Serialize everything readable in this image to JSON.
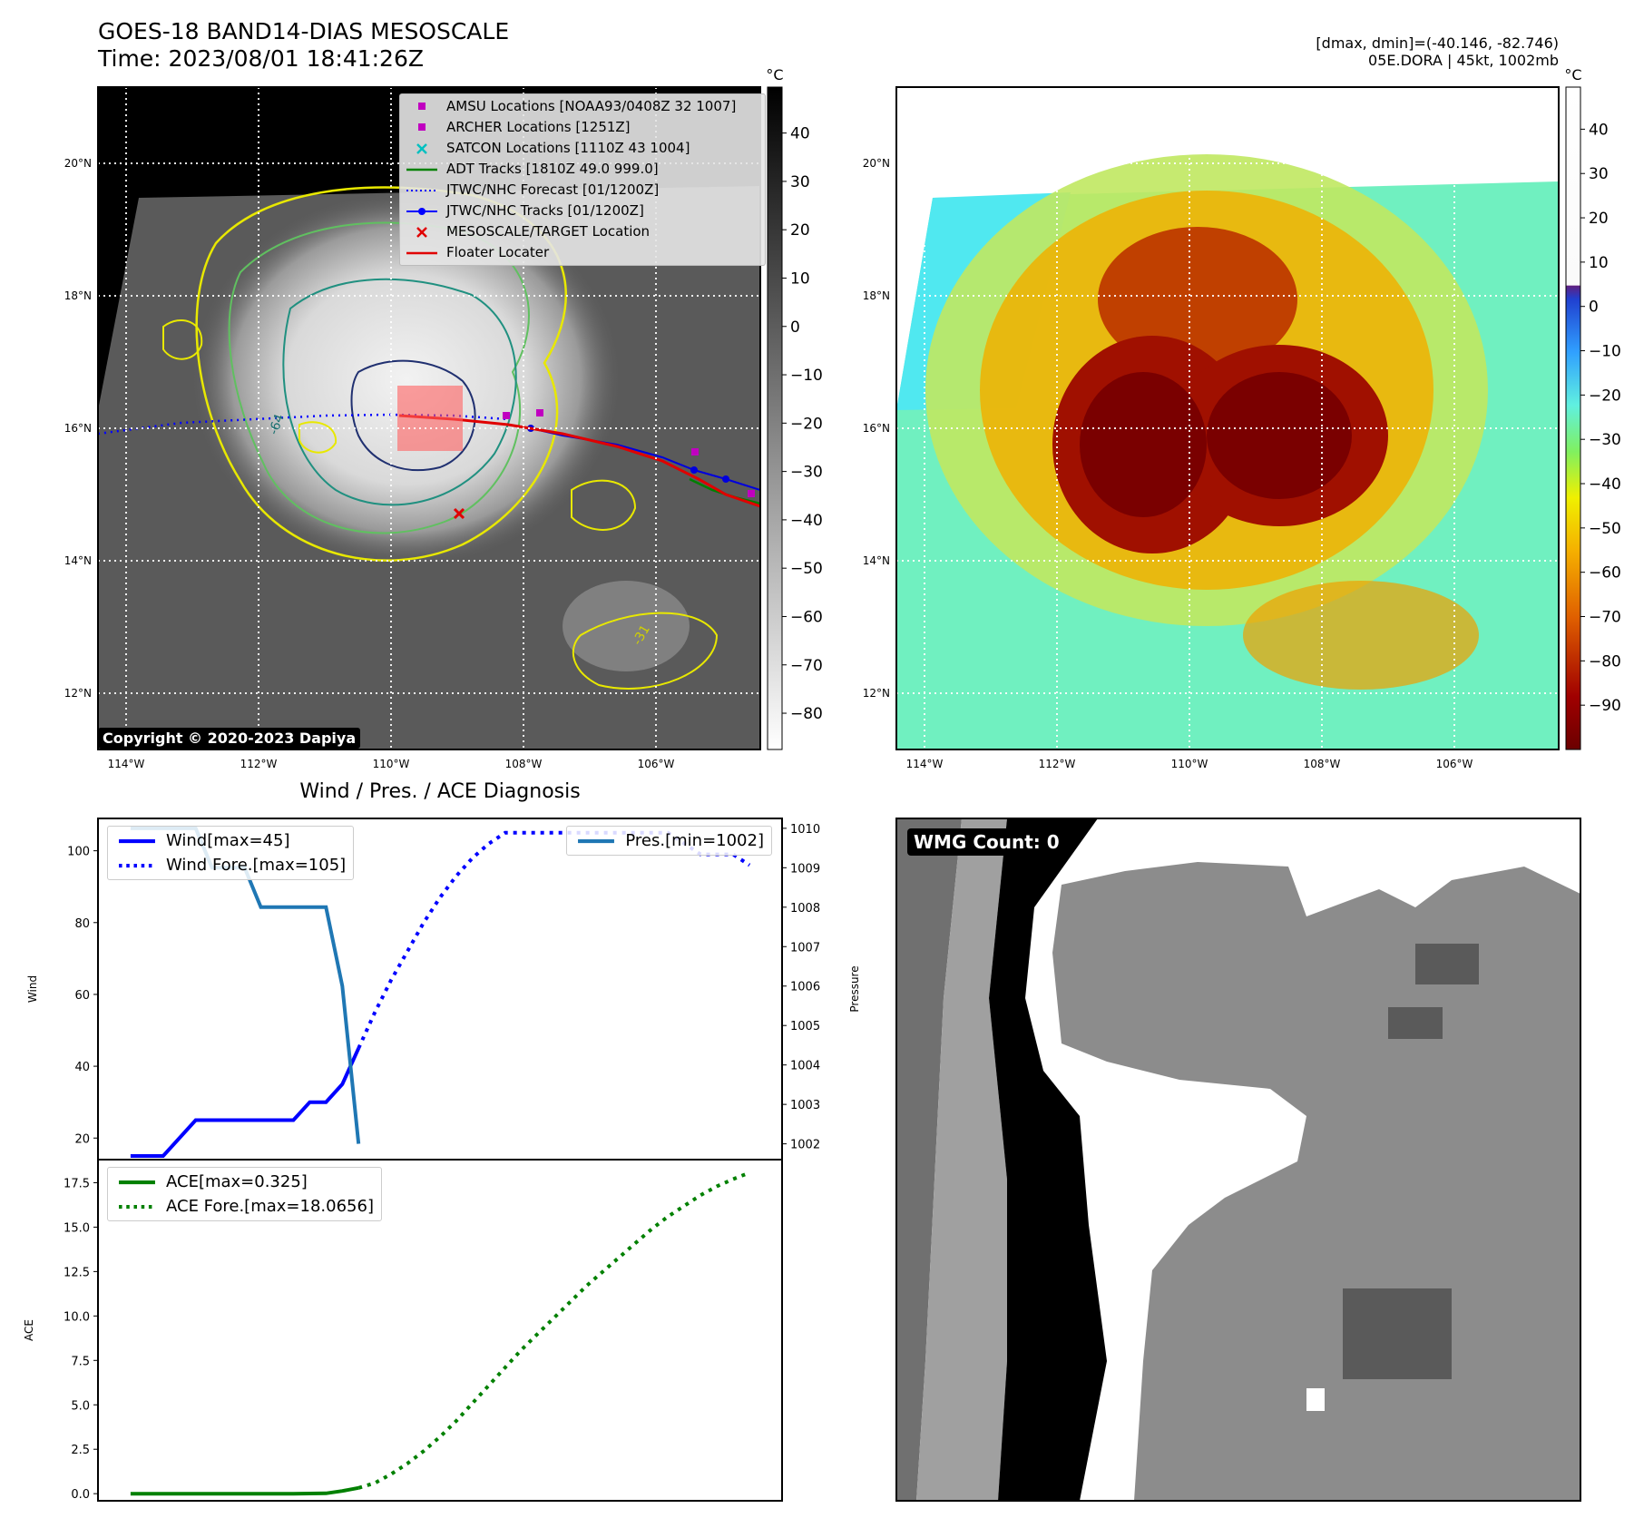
{
  "header": {
    "title_line1": "GOES-18 BAND14-DIAS MESOSCALE",
    "title_line2": "Time: 2023/08/01 18:41:26Z",
    "right_line1": "[dmax, dmin]=(-40.146, -82.746)",
    "right_line2": "05E.DORA | 45kt, 1002mb"
  },
  "map": {
    "lat_labels": [
      "20°N",
      "18°N",
      "16°N",
      "14°N",
      "12°N"
    ],
    "lon_labels": [
      "114°W",
      "112°W",
      "110°W",
      "108°W",
      "106°W"
    ],
    "copyright": "Copyright © 2020-2023 Dapiya",
    "contour_labels": [
      "-64",
      "-31"
    ],
    "legend": [
      {
        "label": "AMSU Locations [NOAA93/0408Z 32 1007]",
        "color": "#c000c0",
        "symbol": "square"
      },
      {
        "label": "ARCHER Locations [1251Z]",
        "color": "#c000c0",
        "symbol": "square"
      },
      {
        "label": "SATCON Locations [1110Z 43 1004]",
        "color": "#00c0c0",
        "symbol": "x"
      },
      {
        "label": "ADT Tracks [1810Z 49.0 999.0]",
        "color": "#008000",
        "symbol": "line"
      },
      {
        "label": "JTWC/NHC Forecast [01/1200Z]",
        "color": "#0000ff",
        "symbol": "dotted"
      },
      {
        "label": "JTWC/NHC Tracks [01/1200Z]",
        "color": "#0000ff",
        "symbol": "line-dot"
      },
      {
        "label": "MESOSCALE/TARGET Location",
        "color": "#e00000",
        "symbol": "x"
      },
      {
        "label": "Floater Locater",
        "color": "#e00000",
        "symbol": "line"
      }
    ]
  },
  "colorbar_gray": {
    "unit": "°C",
    "ticks": [
      "40",
      "30",
      "20",
      "10",
      "0",
      "−10",
      "−20",
      "−30",
      "−40",
      "−50",
      "−60",
      "−70",
      "−80"
    ]
  },
  "colorbar_color": {
    "unit": "°C",
    "ticks": [
      "40",
      "30",
      "20",
      "10",
      "0",
      "−10",
      "−20",
      "−30",
      "−40",
      "−50",
      "−60",
      "−70",
      "−80",
      "−90"
    ]
  },
  "wmg": {
    "label": "WMG Count: 0"
  },
  "chart_data": [
    {
      "type": "line",
      "title": "Wind / Pres. / ACE Diagnosis",
      "ylabel": "Wind",
      "ylabel_right": "Pressure",
      "ylim": [
        14,
        109
      ],
      "ylim_right": [
        1001.6,
        1010.25
      ],
      "yticks": [
        20,
        40,
        60,
        80,
        100
      ],
      "yticks_right": [
        1002,
        1003,
        1004,
        1005,
        1006,
        1007,
        1008,
        1009,
        1010
      ],
      "series": [
        {
          "name": "Wind[max=45]",
          "color": "#0000ff",
          "style": "solid",
          "points": [
            [
              0,
              15
            ],
            [
              2,
              15
            ],
            [
              4,
              25
            ],
            [
              5,
              25
            ],
            [
              6,
              25
            ],
            [
              7,
              25
            ],
            [
              8,
              25
            ],
            [
              9,
              25
            ],
            [
              10,
              25
            ],
            [
              11,
              30
            ],
            [
              12,
              30
            ],
            [
              13,
              35
            ],
            [
              14,
              45
            ]
          ]
        },
        {
          "name": "Wind Fore.[max=105]",
          "color": "#0000ff",
          "style": "dotted",
          "points": [
            [
              14,
              45
            ],
            [
              15,
              55
            ],
            [
              16,
              64
            ],
            [
              17,
              72
            ],
            [
              18,
              80
            ],
            [
              19,
              87
            ],
            [
              20,
              93
            ],
            [
              21,
              98
            ],
            [
              22,
              102
            ],
            [
              23,
              105
            ],
            [
              24,
              105
            ],
            [
              25,
              105
            ],
            [
              26,
              105
            ],
            [
              27,
              105
            ],
            [
              28,
              105
            ],
            [
              29,
              105
            ],
            [
              30,
              105
            ],
            [
              31,
              105
            ],
            [
              32,
              105
            ],
            [
              33,
              105
            ],
            [
              34,
              102
            ],
            [
              35,
              99
            ],
            [
              36,
              99
            ],
            [
              37,
              99
            ],
            [
              38,
              96
            ]
          ]
        },
        {
          "name": "Pres.[min=1002]",
          "color": "#1f77b4",
          "style": "solid",
          "axis": "right",
          "points": [
            [
              0,
              1010
            ],
            [
              1,
              1010
            ],
            [
              2,
              1010
            ],
            [
              3,
              1010
            ],
            [
              4,
              1010
            ],
            [
              5,
              1009
            ],
            [
              6,
              1009
            ],
            [
              7,
              1009
            ],
            [
              8,
              1008
            ],
            [
              9,
              1008
            ],
            [
              10,
              1008
            ],
            [
              11,
              1008
            ],
            [
              12,
              1008
            ],
            [
              13,
              1006
            ],
            [
              14,
              1002
            ]
          ]
        }
      ]
    },
    {
      "type": "line",
      "ylabel": "ACE",
      "ylim": [
        -0.4,
        18.8
      ],
      "yticks": [
        0.0,
        2.5,
        5.0,
        7.5,
        10.0,
        12.5,
        15.0,
        17.5
      ],
      "ytick_labels": [
        "0.0",
        "2.5",
        "5.0",
        "7.5",
        "10.0",
        "12.5",
        "15.0",
        "17.5"
      ],
      "series": [
        {
          "name": "ACE[max=0.325]",
          "color": "#008000",
          "style": "solid",
          "points": [
            [
              0,
              0
            ],
            [
              2,
              0
            ],
            [
              4,
              0
            ],
            [
              6,
              0
            ],
            [
              8,
              0
            ],
            [
              10,
              0
            ],
            [
              12,
              0.02
            ],
            [
              13,
              0.15
            ],
            [
              14,
              0.325
            ]
          ]
        },
        {
          "name": "ACE Fore.[max=18.0656]",
          "color": "#008000",
          "style": "dotted",
          "points": [
            [
              14,
              0.325
            ],
            [
              15,
              0.6
            ],
            [
              16,
              1.1
            ],
            [
              17,
              1.7
            ],
            [
              18,
              2.4
            ],
            [
              19,
              3.2
            ],
            [
              20,
              4.1
            ],
            [
              21,
              5.1
            ],
            [
              22,
              6.1
            ],
            [
              23,
              7.1
            ],
            [
              24,
              8.1
            ],
            [
              25,
              9.0
            ],
            [
              26,
              9.9
            ],
            [
              27,
              10.8
            ],
            [
              28,
              11.7
            ],
            [
              29,
              12.5
            ],
            [
              30,
              13.3
            ],
            [
              31,
              14.1
            ],
            [
              32,
              14.9
            ],
            [
              33,
              15.6
            ],
            [
              34,
              16.2
            ],
            [
              35,
              16.8
            ],
            [
              36,
              17.3
            ],
            [
              37,
              17.7
            ],
            [
              38,
              18.0656
            ]
          ]
        }
      ]
    }
  ]
}
